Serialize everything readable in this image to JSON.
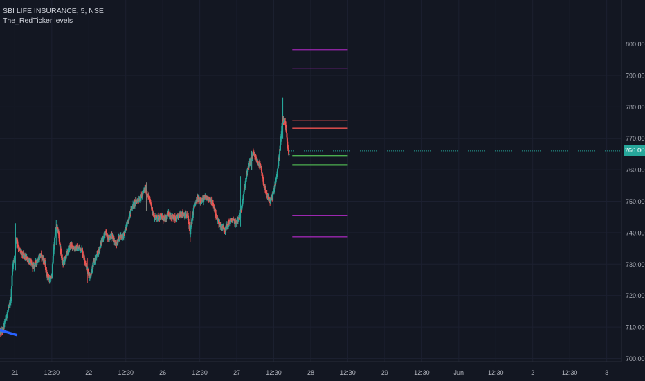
{
  "header": {
    "symbol_line": "SBI LIFE INSURANCE, 5, NSE",
    "indicator_name": "The_RedTicker levels"
  },
  "last_price": "766.00",
  "colors": {
    "background": "#131722",
    "grid": "#1c2030",
    "axis_text": "#b2b5be",
    "up": "#26a69a",
    "down": "#ef5350",
    "purple_level": "#9c27b0",
    "red_level": "#ef5350",
    "green_level": "#4caf50",
    "trend": "#2962ff"
  },
  "chart_data": {
    "type": "candlestick",
    "y_axis": {
      "ticks": [
        "800.00",
        "790.00",
        "780.00",
        "770.00",
        "760.00",
        "750.00",
        "740.00",
        "730.00",
        "720.00",
        "710.00",
        "700.00"
      ],
      "tick_values": [
        800,
        790,
        780,
        770,
        760,
        750,
        740,
        730,
        720,
        710,
        700
      ],
      "ylim": [
        699,
        814
      ],
      "side": "right"
    },
    "x_axis": {
      "tick_labels": [
        "21",
        "12:30",
        "22",
        "12:30",
        "26",
        "12:30",
        "27",
        "12:30",
        "28",
        "12:30",
        "29",
        "12:30",
        "Jun",
        "12:30",
        "2",
        "12:30",
        "3"
      ],
      "tick_positions": [
        0.5,
        1,
        1.5,
        2,
        2.5,
        3,
        3.5,
        4,
        4.5,
        5,
        5.5,
        6,
        6.5,
        7,
        7.5,
        8,
        8.5
      ],
      "xlim": [
        0.3,
        8.7
      ]
    },
    "path": [
      [
        0.3,
        708
      ],
      [
        0.34,
        709
      ],
      [
        0.38,
        713
      ],
      [
        0.42,
        716
      ],
      [
        0.45,
        719
      ],
      [
        0.47,
        729
      ],
      [
        0.5,
        733
      ],
      [
        0.52,
        739
      ],
      [
        0.55,
        735
      ],
      [
        0.6,
        733
      ],
      [
        0.65,
        732
      ],
      [
        0.7,
        731
      ],
      [
        0.75,
        729
      ],
      [
        0.8,
        731
      ],
      [
        0.85,
        733
      ],
      [
        0.9,
        731
      ],
      [
        0.93,
        727
      ],
      [
        0.97,
        725
      ],
      [
        1.0,
        726
      ],
      [
        1.03,
        736
      ],
      [
        1.06,
        742
      ],
      [
        1.09,
        740
      ],
      [
        1.12,
        734
      ],
      [
        1.15,
        730
      ],
      [
        1.2,
        733
      ],
      [
        1.25,
        736
      ],
      [
        1.3,
        735
      ],
      [
        1.35,
        735
      ],
      [
        1.4,
        735
      ],
      [
        1.45,
        731
      ],
      [
        1.48,
        728
      ],
      [
        1.52,
        726
      ],
      [
        1.57,
        731
      ],
      [
        1.62,
        733
      ],
      [
        1.67,
        737
      ],
      [
        1.72,
        740
      ],
      [
        1.77,
        738
      ],
      [
        1.82,
        739
      ],
      [
        1.87,
        736
      ],
      [
        1.92,
        739
      ],
      [
        1.97,
        739
      ],
      [
        2.02,
        743
      ],
      [
        2.08,
        748
      ],
      [
        2.14,
        750
      ],
      [
        2.2,
        751
      ],
      [
        2.26,
        754
      ],
      [
        2.3,
        752
      ],
      [
        2.34,
        749
      ],
      [
        2.38,
        745
      ],
      [
        2.43,
        745
      ],
      [
        2.48,
        745
      ],
      [
        2.53,
        744
      ],
      [
        2.58,
        746
      ],
      [
        2.63,
        745
      ],
      [
        2.68,
        744
      ],
      [
        2.73,
        746
      ],
      [
        2.78,
        746
      ],
      [
        2.84,
        745
      ],
      [
        2.87,
        740
      ],
      [
        2.92,
        748
      ],
      [
        2.97,
        751
      ],
      [
        3.02,
        750
      ],
      [
        3.07,
        751
      ],
      [
        3.12,
        751
      ],
      [
        3.18,
        749
      ],
      [
        3.24,
        744
      ],
      [
        3.29,
        742
      ],
      [
        3.34,
        741
      ],
      [
        3.39,
        743
      ],
      [
        3.44,
        744
      ],
      [
        3.49,
        743
      ],
      [
        3.54,
        745
      ],
      [
        3.59,
        752
      ],
      [
        3.63,
        758
      ],
      [
        3.67,
        762
      ],
      [
        3.72,
        765
      ],
      [
        3.77,
        763
      ],
      [
        3.82,
        761
      ],
      [
        3.86,
        756
      ],
      [
        3.9,
        752
      ],
      [
        3.95,
        750
      ],
      [
        4.0,
        753
      ],
      [
        4.05,
        760
      ],
      [
        4.09,
        768
      ],
      [
        4.12,
        776
      ],
      [
        4.15,
        775
      ],
      [
        4.17,
        772
      ],
      [
        4.19,
        767
      ],
      [
        4.21,
        764
      ]
    ],
    "swing_points": [
      {
        "x": 0.51,
        "low": 728,
        "high": 743
      },
      {
        "x": 1.06,
        "low": 736,
        "high": 744
      },
      {
        "x": 1.48,
        "low": 724,
        "high": 732
      },
      {
        "x": 2.28,
        "low": 747,
        "high": 756
      },
      {
        "x": 2.87,
        "low": 737,
        "high": 747
      },
      {
        "x": 3.55,
        "low": 742,
        "high": 758
      },
      {
        "x": 3.7,
        "low": 760,
        "high": 766
      },
      {
        "x": 4.12,
        "low": 770,
        "high": 783
      },
      {
        "x": 4.21,
        "low": 762,
        "high": 772
      }
    ],
    "trend_line": {
      "x": [
        0.3,
        0.52
      ],
      "y": [
        709,
        707.5
      ]
    },
    "levels": [
      {
        "color_key": "purple_level",
        "value": 798.2,
        "x_start": 4.25,
        "x_end": 5.0
      },
      {
        "color_key": "purple_level",
        "value": 792.1,
        "x_start": 4.25,
        "x_end": 5.0
      },
      {
        "color_key": "red_level",
        "value": 775.6,
        "x_start": 4.25,
        "x_end": 5.0
      },
      {
        "color_key": "red_level",
        "value": 773.2,
        "x_start": 4.25,
        "x_end": 5.0
      },
      {
        "color_key": "green_level",
        "value": 764.5,
        "x_start": 4.25,
        "x_end": 5.0
      },
      {
        "color_key": "green_level",
        "value": 761.6,
        "x_start": 4.25,
        "x_end": 5.0
      },
      {
        "color_key": "purple_level",
        "value": 745.4,
        "x_start": 4.25,
        "x_end": 5.0
      },
      {
        "color_key": "purple_level",
        "value": 738.7,
        "x_start": 4.25,
        "x_end": 5.0
      }
    ]
  }
}
